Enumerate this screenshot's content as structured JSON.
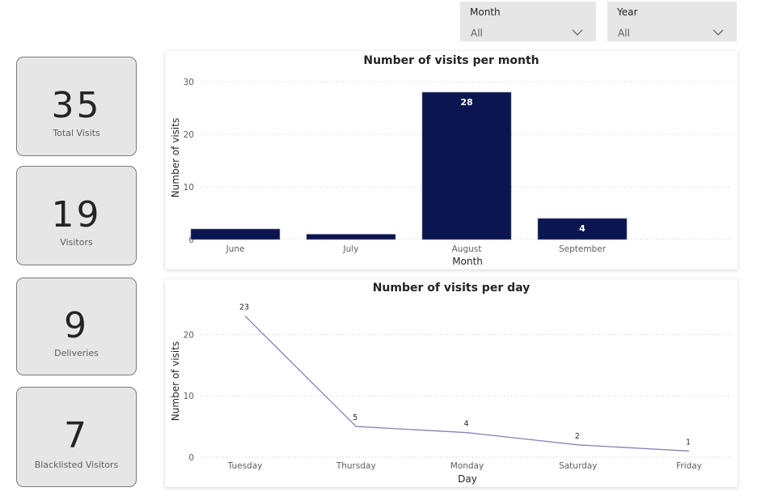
{
  "filters": {
    "month": {
      "label": "Month",
      "value": "All",
      "icon": "chevron-down-icon"
    },
    "year": {
      "label": "Year",
      "value": "All",
      "icon": "chevron-down-icon"
    }
  },
  "cards": [
    {
      "value": "35",
      "label": "Total Visits"
    },
    {
      "value": "19",
      "label": "Visitors"
    },
    {
      "value": "9",
      "label": "Deliveries"
    },
    {
      "value": "7",
      "label": "Blacklisted Visitors"
    }
  ],
  "colors": {
    "bar": "#0b154f",
    "line": "#8683b8",
    "card_bg": "#e6e6e6",
    "slicer_bg": "#e6e6e6"
  },
  "chart_data": [
    {
      "type": "bar",
      "title": "Number of visits per month",
      "xlabel": "Month",
      "ylabel": "Number of visits",
      "categories": [
        "June",
        "July",
        "August",
        "September"
      ],
      "values": [
        2,
        1,
        28,
        4
      ],
      "data_labels": [
        "",
        "",
        "28",
        "4"
      ],
      "ylim": [
        0,
        30
      ],
      "yticks": [
        0,
        10,
        20,
        30
      ],
      "grid": true,
      "legend": "none"
    },
    {
      "type": "line",
      "title": "Number of visits per day",
      "xlabel": "Day",
      "ylabel": "Number of visits",
      "categories": [
        "Tuesday",
        "Thursday",
        "Monday",
        "Saturday",
        "Friday"
      ],
      "values": [
        23,
        5,
        4,
        2,
        1
      ],
      "data_labels": [
        "23",
        "5",
        "4",
        "2",
        "1"
      ],
      "ylim": [
        0,
        24
      ],
      "yticks": [
        0,
        10,
        20
      ],
      "grid": true,
      "legend": "none"
    }
  ]
}
